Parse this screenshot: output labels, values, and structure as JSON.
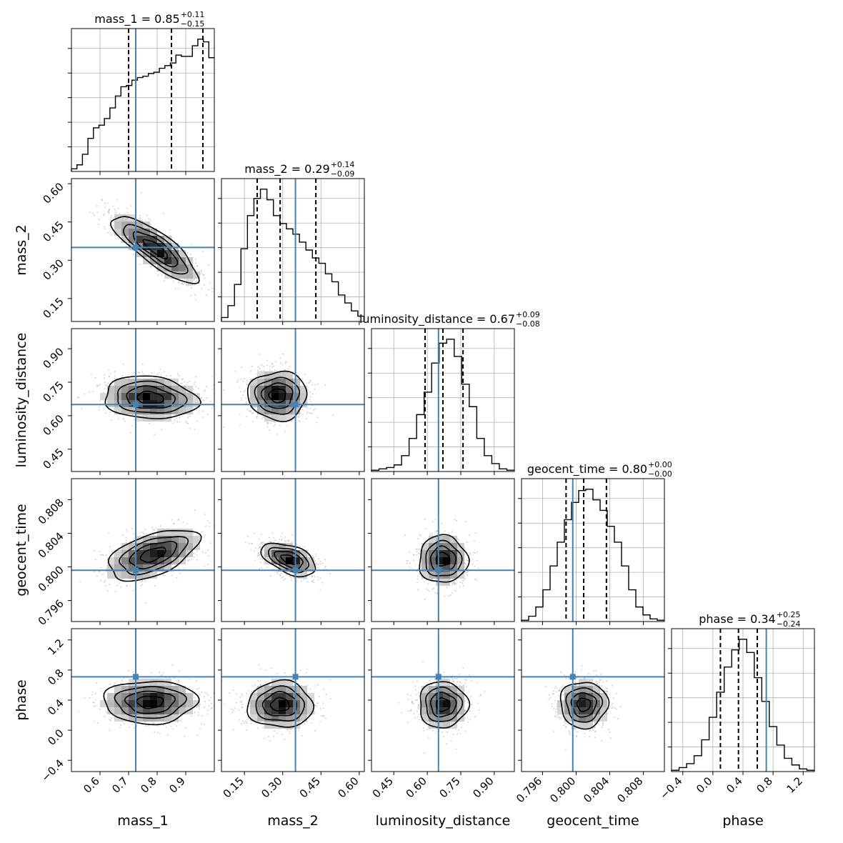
{
  "chart_data": {
    "type": "corner",
    "parameters": [
      "mass_1",
      "mass_2",
      "luminosity_distance",
      "geocent_time",
      "phase"
    ],
    "ranges": {
      "mass_1": [
        0.5,
        1.0
      ],
      "mass_2": [
        0.06,
        0.62
      ],
      "luminosity_distance": [
        0.35,
        0.99
      ],
      "geocent_time": [
        0.7935,
        0.8105
      ],
      "phase": [
        -0.55,
        1.35
      ]
    },
    "ticks": {
      "mass_1": [
        "0.6",
        "0.7",
        "0.8",
        "0.9"
      ],
      "mass_2": [
        "0.15",
        "0.30",
        "0.45",
        "0.60"
      ],
      "luminosity_distance": [
        "0.45",
        "0.60",
        "0.75",
        "0.90"
      ],
      "geocent_time": [
        "0.796",
        "0.800",
        "0.804",
        "0.808"
      ],
      "phase": [
        "−0.4",
        "0.0",
        "0.4",
        "0.8",
        "1.2"
      ]
    },
    "titles": {
      "mass_1": {
        "main": "mass_1 = 0.85",
        "sup": "+0.11",
        "sub": "−0.15"
      },
      "mass_2": {
        "main": "mass_2 = 0.29",
        "sup": "+0.14",
        "sub": "−0.09"
      },
      "luminosity_distance": {
        "main": "luminosity_distance = 0.67",
        "sup": "+0.09",
        "sub": "−0.08"
      },
      "geocent_time": {
        "main": "geocent_time = 0.80",
        "sup": "+0.00",
        "sub": "−0.00"
      },
      "phase": {
        "main": "phase = 0.34",
        "sup": "+0.25",
        "sub": "−0.24"
      }
    },
    "medians": {
      "mass_1": 0.85,
      "mass_2": 0.29,
      "luminosity_distance": 0.67,
      "geocent_time": 0.8009,
      "phase": 0.34
    },
    "quantiles": {
      "mass_1": [
        0.7,
        0.85,
        0.96
      ],
      "mass_2": [
        0.2,
        0.29,
        0.43
      ],
      "luminosity_distance": [
        0.59,
        0.67,
        0.76
      ],
      "geocent_time": [
        0.7988,
        0.8009,
        0.8036
      ],
      "phase": [
        0.1,
        0.34,
        0.59
      ]
    },
    "truths": {
      "mass_1": 0.725,
      "mass_2": 0.35,
      "luminosity_distance": 0.65,
      "geocent_time": 0.7996,
      "phase": 0.71
    },
    "histograms": {
      "mass_1": [
        0.02,
        0.05,
        0.13,
        0.25,
        0.33,
        0.35,
        0.4,
        0.48,
        0.57,
        0.64,
        0.65,
        0.69,
        0.71,
        0.72,
        0.74,
        0.75,
        0.78,
        0.8,
        0.82,
        0.88,
        0.87,
        0.87,
        0.95,
        1.0,
        0.98,
        0.86
      ],
      "mass_2": [
        0.03,
        0.12,
        0.28,
        0.55,
        0.8,
        0.93,
        1.0,
        0.92,
        0.8,
        0.74,
        0.7,
        0.66,
        0.6,
        0.54,
        0.48,
        0.44,
        0.36,
        0.3,
        0.2,
        0.14,
        0.08,
        0.04
      ],
      "luminosity_distance": [
        0.01,
        0.02,
        0.03,
        0.05,
        0.12,
        0.25,
        0.43,
        0.6,
        0.82,
        0.97,
        1.0,
        0.87,
        0.66,
        0.49,
        0.25,
        0.12,
        0.06,
        0.02,
        0.01
      ],
      "geocent_time": [
        0.01,
        0.04,
        0.11,
        0.24,
        0.42,
        0.6,
        0.77,
        0.9,
        0.99,
        1.0,
        0.92,
        0.84,
        0.72,
        0.6,
        0.42,
        0.24,
        0.11,
        0.05,
        0.02,
        0.01
      ],
      "phase": [
        0.01,
        0.03,
        0.06,
        0.12,
        0.24,
        0.41,
        0.6,
        0.79,
        0.92,
        1.0,
        0.9,
        0.71,
        0.53,
        0.34,
        0.2,
        0.1,
        0.05,
        0.02,
        0.01
      ]
    },
    "joint": [
      {
        "x": "mass_1",
        "y": "mass_2",
        "type": "band",
        "start": [
          0.62,
          0.49
        ],
        "end": [
          0.97,
          0.2
        ],
        "width": 0.09
      },
      {
        "x": "mass_1",
        "y": "luminosity_distance",
        "type": "band",
        "start": [
          0.58,
          0.7
        ],
        "end": [
          0.97,
          0.66
        ],
        "width": 0.14
      },
      {
        "x": "mass_1",
        "y": "geocent_time",
        "type": "band",
        "start": [
          0.6,
          0.7991
        ],
        "end": [
          0.97,
          0.8038
        ],
        "width": 0.0036
      },
      {
        "x": "mass_1",
        "y": "phase",
        "type": "band",
        "start": [
          0.58,
          0.37
        ],
        "end": [
          0.97,
          0.38
        ],
        "width": 0.42
      },
      {
        "x": "mass_2",
        "y": "luminosity_distance",
        "type": "blob",
        "center": [
          0.28,
          0.69
        ],
        "spread": [
          0.09,
          0.085
        ]
      },
      {
        "x": "mass_2",
        "y": "geocent_time",
        "type": "band",
        "start": [
          0.2,
          0.8024
        ],
        "end": [
          0.45,
          0.7994
        ],
        "width": 0.0024
      },
      {
        "x": "mass_2",
        "y": "phase",
        "type": "blob",
        "center": [
          0.29,
          0.34
        ],
        "spread": [
          0.1,
          0.24
        ]
      },
      {
        "x": "luminosity_distance",
        "y": "geocent_time",
        "type": "blob",
        "center": [
          0.67,
          0.8009
        ],
        "spread": [
          0.085,
          0.0022
        ]
      },
      {
        "x": "luminosity_distance",
        "y": "phase",
        "type": "blob",
        "center": [
          0.67,
          0.34
        ],
        "spread": [
          0.085,
          0.24
        ]
      },
      {
        "x": "geocent_time",
        "y": "phase",
        "type": "blob",
        "center": [
          0.8009,
          0.34
        ],
        "spread": [
          0.0022,
          0.24
        ]
      }
    ],
    "colors": {
      "truth": "#4682b4",
      "line": "#000000",
      "grid": "#b0b0b0",
      "samples": "#808080"
    },
    "grid": true
  }
}
